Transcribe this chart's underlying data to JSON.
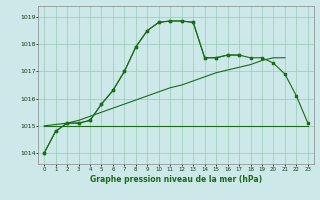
{
  "title": "Graphe pression niveau de la mer (hPa)",
  "bg_color": "#cce8e8",
  "grid_color": "#99ccbb",
  "line_color": "#1a6b1a",
  "marker_color": "#1a6b1a",
  "xlim": [
    -0.5,
    23.5
  ],
  "ylim": [
    1013.6,
    1019.4
  ],
  "yticks": [
    1014,
    1015,
    1016,
    1017,
    1018,
    1019
  ],
  "xticks": [
    0,
    1,
    2,
    3,
    4,
    5,
    6,
    7,
    8,
    9,
    10,
    11,
    12,
    13,
    14,
    15,
    16,
    17,
    18,
    19,
    20,
    21,
    22,
    23
  ],
  "series_main": [
    1014.0,
    1014.8,
    1015.1,
    1015.1,
    1015.2,
    1015.8,
    1016.3,
    1017.0,
    1017.9,
    1018.5,
    1018.8,
    1018.85,
    1018.85,
    1018.8,
    1017.5,
    1017.5,
    1017.6,
    1017.6,
    1017.5,
    1017.5,
    1017.3,
    1016.9,
    1016.1,
    1015.1
  ],
  "series_flat": [
    1015.0,
    1015.0,
    1015.0,
    1015.0,
    1015.0,
    1015.0,
    1015.0,
    1015.0,
    1015.0,
    1015.0,
    1015.0,
    1015.0,
    1015.0,
    1015.0,
    1015.0,
    1015.0,
    1015.0,
    1015.0,
    1015.0,
    1015.0,
    1015.0,
    1015.0,
    1015.0,
    1015.0
  ],
  "series_rise": [
    1015.0,
    1015.05,
    1015.1,
    1015.2,
    1015.35,
    1015.5,
    1015.65,
    1015.8,
    1015.95,
    1016.1,
    1016.25,
    1016.4,
    1016.5,
    1016.65,
    1016.8,
    1016.95,
    1017.05,
    1017.15,
    1017.25,
    1017.4,
    1017.5,
    1017.5,
    null,
    null
  ],
  "series_partial_x": [
    0,
    1,
    2,
    3,
    4,
    5,
    6,
    7,
    8,
    9,
    10,
    11,
    12,
    13,
    14,
    15,
    16,
    17
  ],
  "series_partial_y": [
    1014.0,
    1014.8,
    1015.1,
    1015.1,
    1015.2,
    1015.8,
    1016.3,
    1017.0,
    1017.9,
    1018.5,
    1018.8,
    1018.85,
    1018.85,
    1018.8,
    1017.5,
    1017.5,
    1017.6,
    1017.6
  ]
}
